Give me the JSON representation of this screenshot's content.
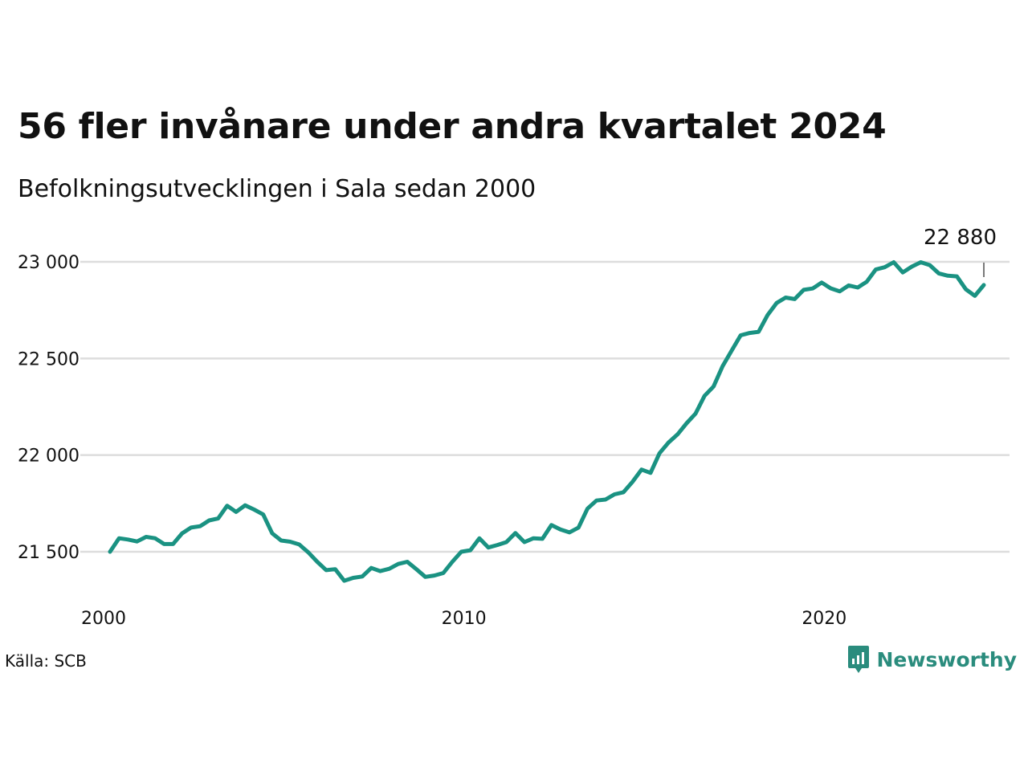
{
  "title": "56 fler invånare under andra kvartalet 2024",
  "subtitle": "Befolkningsutvecklingen i Sala sedan 2000",
  "source": "Källa: SCB",
  "brand": {
    "name": "Newsworthy",
    "icon": "newsworthy-logo-icon"
  },
  "colors": {
    "line": "#1a9282",
    "grid": "#dddddd",
    "brand": "#2a8c7d",
    "text": "#111111"
  },
  "chart_data": {
    "type": "line",
    "title": "56 fler invånare under andra kvartalet 2024",
    "subtitle": "Befolkningsutvecklingen i Sala sedan 2000",
    "xlabel": "",
    "ylabel": "",
    "xlim": [
      2000.0,
      2024.25
    ],
    "ylim": [
      21300,
      23050
    ],
    "grid": "horizontal",
    "legend": "none",
    "x_ticks": [
      2000,
      2010,
      2020
    ],
    "x_tick_labels": [
      "2000",
      "2010",
      "2020"
    ],
    "y_ticks": [
      21500,
      22000,
      22500,
      23000
    ],
    "y_tick_labels": [
      "21 500",
      "22 000",
      "22 500",
      "23 000"
    ],
    "last_value_label": "22 880",
    "series": [
      {
        "x": [
          2000.0,
          2000.25,
          2000.5,
          2000.75,
          2001.0,
          2001.25,
          2001.5,
          2001.75,
          2002.0,
          2002.25,
          2002.5,
          2002.75,
          2003.0,
          2003.25,
          2003.5,
          2003.75,
          2004.0,
          2004.25,
          2004.5,
          2004.75,
          2005.0,
          2005.25,
          2005.5,
          2005.75,
          2006.0,
          2006.25,
          2006.5,
          2006.75,
          2007.0,
          2007.25,
          2007.5,
          2007.75,
          2008.0,
          2008.25,
          2008.5,
          2008.75,
          2009.0,
          2009.25,
          2009.5,
          2009.75,
          2010.0,
          2010.25,
          2010.5,
          2010.75,
          2011.0,
          2011.25,
          2011.5,
          2011.75,
          2012.0,
          2012.25,
          2012.5,
          2012.75,
          2013.0,
          2013.25,
          2013.5,
          2013.75,
          2014.0,
          2014.25,
          2014.5,
          2014.75,
          2015.0,
          2015.25,
          2015.5,
          2015.75,
          2016.0,
          2016.25,
          2016.5,
          2016.75,
          2017.0,
          2017.25,
          2017.5,
          2017.75,
          2018.0,
          2018.25,
          2018.5,
          2018.75,
          2019.0,
          2019.25,
          2019.5,
          2019.75,
          2020.0,
          2020.25,
          2020.5,
          2020.75,
          2021.0,
          2021.25,
          2021.5,
          2021.75,
          2022.0,
          2022.25,
          2022.5,
          2022.75,
          2023.0,
          2023.25,
          2023.5,
          2023.75,
          2024.0,
          2024.25
        ],
        "values": [
          21500,
          21570,
          21563,
          21553,
          21577,
          21570,
          21540,
          21540,
          21595,
          21625,
          21632,
          21662,
          21672,
          21738,
          21706,
          21740,
          21718,
          21693,
          21595,
          21558,
          21552,
          21538,
          21497,
          21448,
          21405,
          21410,
          21350,
          21365,
          21372,
          21416,
          21400,
          21412,
          21437,
          21448,
          21410,
          21370,
          21377,
          21390,
          21448,
          21500,
          21508,
          21570,
          21522,
          21535,
          21550,
          21597,
          21550,
          21570,
          21567,
          21638,
          21615,
          21600,
          21625,
          21723,
          21765,
          21770,
          21797,
          21808,
          21862,
          21925,
          21908,
          22010,
          22065,
          22107,
          22165,
          22215,
          22307,
          22355,
          22460,
          22540,
          22620,
          22632,
          22638,
          22725,
          22787,
          22815,
          22807,
          22855,
          22862,
          22893,
          22863,
          22847,
          22878,
          22867,
          22897,
          22960,
          22972,
          22998,
          22945,
          22975,
          22998,
          22983,
          22940,
          22928,
          22925,
          22858,
          22824,
          22880
        ]
      }
    ]
  }
}
